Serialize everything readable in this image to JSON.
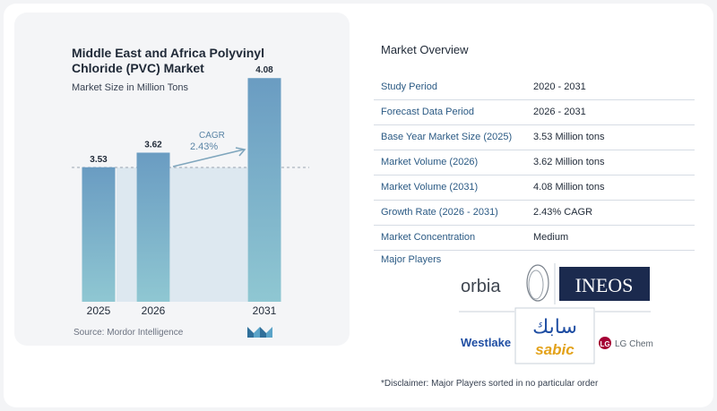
{
  "chart_title": "Middle East and Africa Polyvinyl Chloride (PVC) Market",
  "chart_subtitle": "Market Size in Million Tons",
  "chart_data": {
    "type": "bar",
    "categories": [
      "2025",
      "2026",
      "2031"
    ],
    "values": [
      3.53,
      3.62,
      4.08
    ],
    "value_labels": [
      "3.53",
      "3.62",
      "4.08"
    ],
    "title": "Middle East and Africa Polyvinyl Chloride (PVC) Market",
    "ylabel": "Market Size in Million Tons",
    "annotation": {
      "label": "CAGR",
      "value": "2.43%"
    },
    "grid": false
  },
  "source": "Source: Mordor Intelligence",
  "overview": {
    "title": "Market Overview",
    "rows": [
      {
        "key": "Study Period",
        "value": "2020 - 2031"
      },
      {
        "key": "Forecast Data Period",
        "value": "2026 - 2031"
      },
      {
        "key": "Base Year Market Size (2025)",
        "value": "3.53 Million tons"
      },
      {
        "key": "Market Volume (2026)",
        "value": "3.62 Million tons"
      },
      {
        "key": "Market Volume (2031)",
        "value": "4.08 Million tons"
      },
      {
        "key": "Growth Rate (2026 - 2031)",
        "value": "2.43% CAGR"
      },
      {
        "key": "Market Concentration",
        "value": "Medium"
      }
    ],
    "major_players_label": "Major Players",
    "players": [
      "orbia",
      "INEOS",
      "Westlake",
      "sabic",
      "LG Chem"
    ],
    "sabic_arabic": "سابك"
  },
  "disclaimer": "*Disclaimer: Major Players sorted in no particular order",
  "colors": {
    "bar_top": "#6a9cc2",
    "bar_bottom": "#8fc7d2",
    "band": "#dde8f0",
    "arrow": "#7fa6bd",
    "accent_text": "#2b5a84",
    "ineos_bg": "#1b2a4e",
    "sabic_blue": "#1f4ea3",
    "sabic_gold": "#e3a21a",
    "lg_red": "#a50034"
  }
}
